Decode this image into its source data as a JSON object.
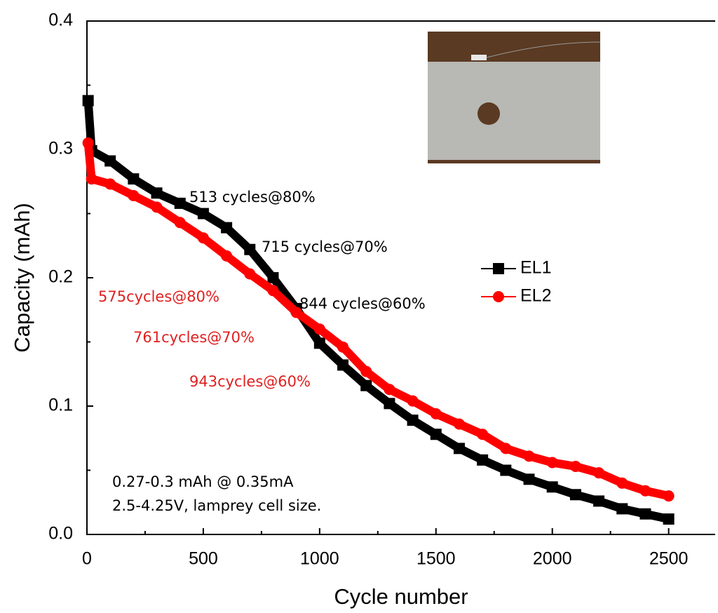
{
  "chart_data": {
    "type": "line",
    "xlabel": "Cycle number",
    "ylabel": "Capacity (mAh)",
    "x": [
      5,
      20,
      100,
      200,
      300,
      400,
      500,
      600,
      700,
      800,
      900,
      1000,
      1100,
      1200,
      1300,
      1400,
      1500,
      1600,
      1700,
      1800,
      1900,
      2000,
      2100,
      2200,
      2300,
      2400,
      2500
    ],
    "series": [
      {
        "name": "EL1",
        "color": "#000000",
        "marker": "square",
        "values": [
          0.338,
          0.299,
          0.291,
          0.277,
          0.266,
          0.258,
          0.25,
          0.239,
          0.222,
          0.2,
          0.176,
          0.149,
          0.132,
          0.116,
          0.102,
          0.089,
          0.078,
          0.067,
          0.058,
          0.05,
          0.043,
          0.037,
          0.031,
          0.026,
          0.02,
          0.016,
          0.012
        ]
      },
      {
        "name": "EL2",
        "color": "#ff0000",
        "marker": "circle",
        "values": [
          0.305,
          0.277,
          0.273,
          0.264,
          0.255,
          0.243,
          0.231,
          0.217,
          0.203,
          0.19,
          0.173,
          0.16,
          0.146,
          0.127,
          0.113,
          0.104,
          0.094,
          0.086,
          0.078,
          0.067,
          0.061,
          0.056,
          0.053,
          0.048,
          0.04,
          0.034,
          0.03
        ]
      }
    ],
    "xlim": [
      0,
      2700
    ],
    "ylim": [
      0,
      0.4
    ],
    "xticks": [
      0,
      500,
      1000,
      1500,
      2000,
      2500
    ],
    "yticks": [
      {
        "value": 0,
        "label": "0.0"
      },
      0.1,
      0.2,
      0.3,
      0.4
    ],
    "legend": "right",
    "annotations": [
      {
        "text": "513 cycles@80%",
        "color": "#000000"
      },
      {
        "text": "715 cycles@70%",
        "color": "#000000"
      },
      {
        "text": "844 cycles@60%",
        "color": "#000000"
      },
      {
        "text": "575cycles@80%",
        "color": "#e02020"
      },
      {
        "text": "761cycles@70%",
        "color": "#e02020"
      },
      {
        "text": "943cycles@60%",
        "color": "#e02020"
      },
      {
        "text": "0.27-0.3 mAh @ 0.35mA",
        "color": "#000000"
      },
      {
        "text": "2.5-4.25V, lamprey cell size.",
        "color": "#000000"
      }
    ]
  }
}
